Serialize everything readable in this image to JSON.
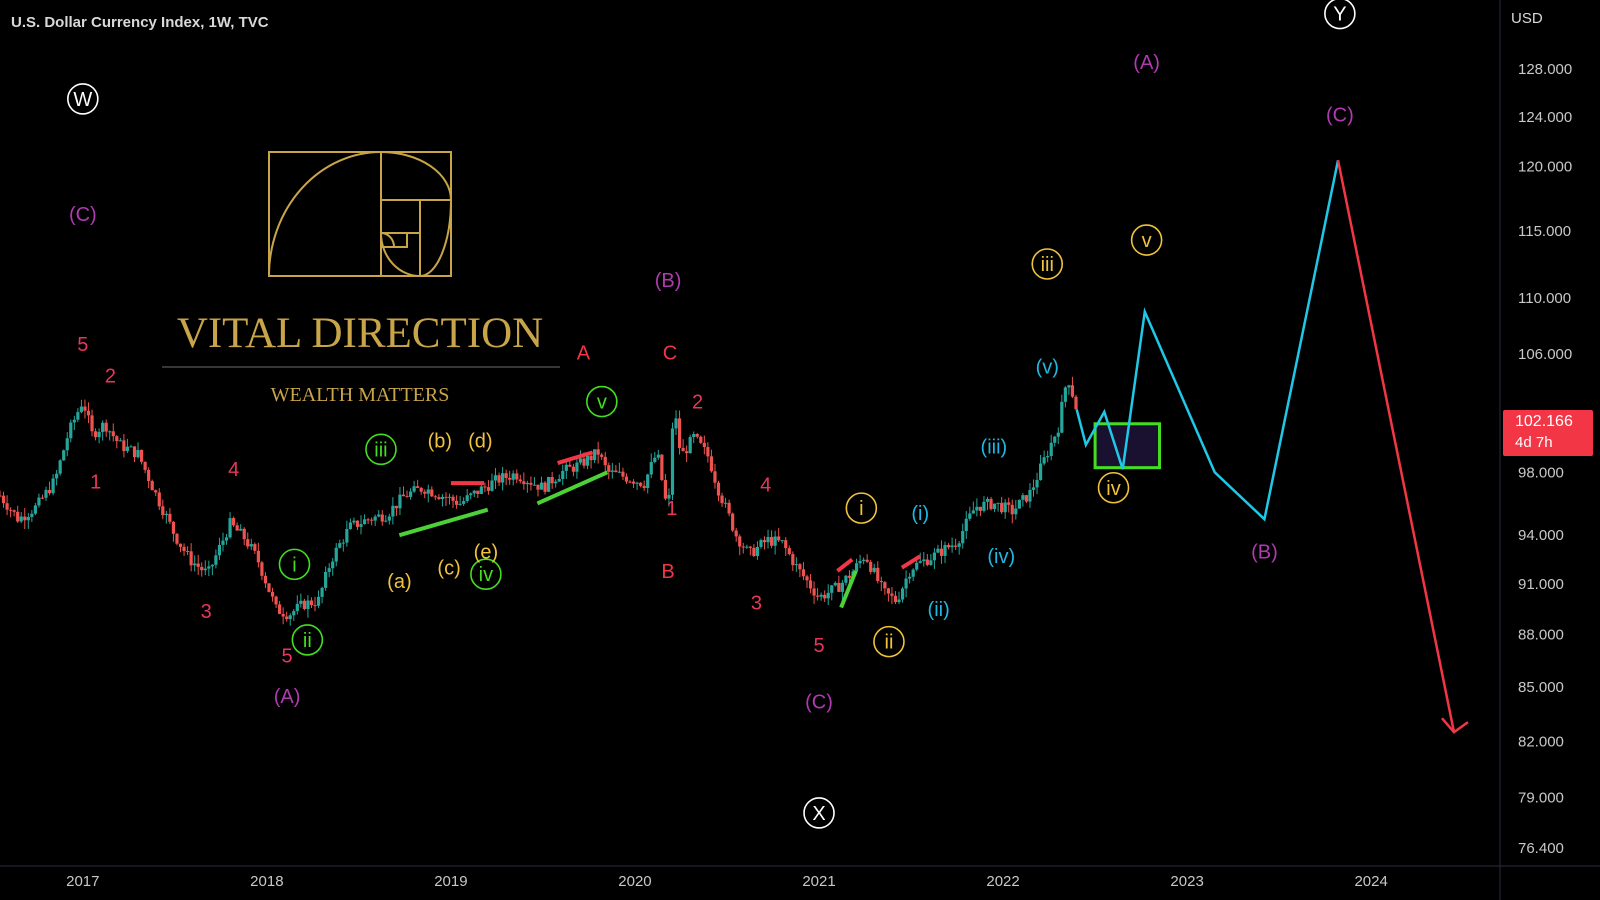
{
  "header": {
    "symbol_title": "U.S. Dollar Currency Index, 1W, TVC",
    "currency": "USD"
  },
  "price_tag": {
    "price": "102.166",
    "countdown": "4d 7h"
  },
  "watermark": {
    "title": "VITAL DIRECTION",
    "subtitle": "WEALTH MATTERS"
  },
  "colors": {
    "background": "#000000",
    "up_candle": "#26a69a",
    "down_candle": "#ef5350",
    "projection_up": "#20c8e8",
    "projection_down": "#f23645",
    "target_box": "#44dd22",
    "gold": "#c9a54a"
  },
  "chart_data": {
    "type": "line",
    "title": "U.S. Dollar Currency Index, 1W, TVC",
    "y_axis": {
      "scale": "log",
      "range": [
        75.5,
        134
      ],
      "ticks": [
        "128.000",
        "124.000",
        "120.000",
        "115.000",
        "110.000",
        "106.000",
        "98.000",
        "94.000",
        "91.000",
        "88.000",
        "85.000",
        "82.000",
        "79.000",
        "76.400"
      ]
    },
    "x_axis": {
      "range": [
        2016.55,
        2024.7
      ],
      "ticks": [
        "2017",
        "2018",
        "2019",
        "2020",
        "2021",
        "2022",
        "2023",
        "2024"
      ]
    },
    "last_price": 102.166,
    "price_path": {
      "name": "",
      "points": [
        [
          2016.55,
          96.5
        ],
        [
          2016.65,
          95.0
        ],
        [
          2016.75,
          95.8
        ],
        [
          2016.85,
          97.5
        ],
        [
          2016.92,
          100.5
        ],
        [
          2017.0,
          102.8
        ],
        [
          2017.05,
          100.5
        ],
        [
          2017.12,
          101.2
        ],
        [
          2017.2,
          99.8
        ],
        [
          2017.3,
          99.2
        ],
        [
          2017.4,
          96.5
        ],
        [
          2017.5,
          94.0
        ],
        [
          2017.58,
          92.5
        ],
        [
          2017.68,
          91.6
        ],
        [
          2017.8,
          94.7
        ],
        [
          2017.88,
          93.8
        ],
        [
          2017.95,
          92.5
        ],
        [
          2018.05,
          89.5
        ],
        [
          2018.12,
          89.2
        ],
        [
          2018.2,
          89.8
        ],
        [
          2018.28,
          90.0
        ],
        [
          2018.35,
          92.5
        ],
        [
          2018.45,
          94.5
        ],
        [
          2018.55,
          95.0
        ],
        [
          2018.65,
          95.3
        ],
        [
          2018.75,
          96.5
        ],
        [
          2018.85,
          97.0
        ],
        [
          2018.95,
          96.5
        ],
        [
          2019.05,
          96.0
        ],
        [
          2019.15,
          96.8
        ],
        [
          2019.25,
          97.5
        ],
        [
          2019.35,
          97.9
        ],
        [
          2019.5,
          97.0
        ],
        [
          2019.6,
          98.0
        ],
        [
          2019.7,
          98.5
        ],
        [
          2019.8,
          99.3
        ],
        [
          2019.85,
          98.0
        ],
        [
          2019.92,
          97.8
        ],
        [
          2020.05,
          97.3
        ],
        [
          2020.12,
          99.3
        ],
        [
          2020.18,
          95.2
        ],
        [
          2020.21,
          102.5
        ],
        [
          2020.25,
          99.0
        ],
        [
          2020.32,
          100.3
        ],
        [
          2020.4,
          99.0
        ],
        [
          2020.45,
          97.0
        ],
        [
          2020.55,
          94.0
        ],
        [
          2020.62,
          92.8
        ],
        [
          2020.72,
          93.7
        ],
        [
          2020.8,
          93.5
        ],
        [
          2020.88,
          92.0
        ],
        [
          2021.0,
          90.2
        ],
        [
          2021.1,
          90.8
        ],
        [
          2021.18,
          91.7
        ],
        [
          2021.25,
          92.8
        ],
        [
          2021.35,
          90.5
        ],
        [
          2021.42,
          90.0
        ],
        [
          2021.5,
          92.0
        ],
        [
          2021.62,
          92.7
        ],
        [
          2021.75,
          93.6
        ],
        [
          2021.85,
          95.8
        ],
        [
          2021.95,
          96.0
        ],
        [
          2022.05,
          95.5
        ],
        [
          2022.15,
          96.7
        ],
        [
          2022.22,
          98.7
        ],
        [
          2022.3,
          101.0
        ],
        [
          2022.35,
          104.5
        ],
        [
          2022.4,
          102.166
        ]
      ]
    },
    "projection": {
      "up_path": [
        [
          2022.4,
          102.166
        ],
        [
          2022.45,
          99.8
        ],
        [
          2022.55,
          102.0
        ],
        [
          2022.65,
          98.2
        ],
        [
          2022.77,
          109.0
        ],
        [
          2023.15,
          98.0
        ],
        [
          2023.42,
          95.0
        ],
        [
          2023.82,
          120.5
        ]
      ],
      "down_path": [
        [
          2023.82,
          120.5
        ],
        [
          2024.45,
          82.5
        ]
      ]
    },
    "target_box": {
      "x": [
        2022.5,
        2022.85
      ],
      "y": [
        98.3,
        101.2
      ]
    },
    "trendlines": [
      {
        "color": "green",
        "points": [
          [
            2018.72,
            94.0
          ],
          [
            2019.2,
            95.6
          ]
        ]
      },
      {
        "color": "red",
        "points": [
          [
            2019.0,
            97.3
          ],
          [
            2019.18,
            97.3
          ]
        ]
      },
      {
        "color": "green",
        "points": [
          [
            2019.47,
            96.0
          ],
          [
            2019.85,
            98.0
          ]
        ]
      },
      {
        "color": "red",
        "points": [
          [
            2019.58,
            98.6
          ],
          [
            2019.77,
            99.3
          ]
        ]
      },
      {
        "color": "green",
        "points": [
          [
            2021.12,
            89.6
          ],
          [
            2021.2,
            91.8
          ]
        ]
      },
      {
        "color": "red",
        "points": [
          [
            2021.1,
            91.8
          ],
          [
            2021.18,
            92.5
          ]
        ]
      },
      {
        "color": "red",
        "points": [
          [
            2021.45,
            92.0
          ],
          [
            2021.55,
            92.7
          ]
        ]
      }
    ],
    "wave_labels": [
      {
        "text": "W",
        "circled": true,
        "x": 2017.0,
        "y": 125.5,
        "color": "#ffffff"
      },
      {
        "text": "(C)",
        "x": 2017.0,
        "y": 116.3,
        "color": "#b03ab0"
      },
      {
        "text": "5",
        "x": 2017.0,
        "y": 106.7,
        "color": "#e8365a"
      },
      {
        "text": "2",
        "x": 2017.15,
        "y": 104.5,
        "color": "#e8365a"
      },
      {
        "text": "1",
        "x": 2017.07,
        "y": 97.4,
        "color": "#e8365a"
      },
      {
        "text": "4",
        "x": 2017.82,
        "y": 98.2,
        "color": "#e8365a"
      },
      {
        "text": "3",
        "x": 2017.67,
        "y": 89.4,
        "color": "#e8365a"
      },
      {
        "text": "5",
        "x": 2018.11,
        "y": 86.8,
        "color": "#e8365a"
      },
      {
        "text": "(A)",
        "x": 2018.11,
        "y": 84.5,
        "color": "#b03ab0"
      },
      {
        "text": "i",
        "circled": true,
        "x": 2018.15,
        "y": 92.2,
        "color": "#44dd22"
      },
      {
        "text": "ii",
        "circled": true,
        "x": 2018.22,
        "y": 87.7,
        "color": "#44dd22"
      },
      {
        "text": "iii",
        "circled": true,
        "x": 2018.62,
        "y": 99.5,
        "color": "#44dd22"
      },
      {
        "text": "iv",
        "circled": true,
        "x": 2019.19,
        "y": 91.6,
        "color": "#44dd22"
      },
      {
        "text": "v",
        "circled": true,
        "x": 2019.82,
        "y": 102.7,
        "color": "#44dd22"
      },
      {
        "text": "(a)",
        "x": 2018.72,
        "y": 91.2,
        "color": "#f0c33c"
      },
      {
        "text": "(b)",
        "x": 2018.94,
        "y": 100.1,
        "color": "#f0c33c"
      },
      {
        "text": "(c)",
        "x": 2018.99,
        "y": 92.0,
        "color": "#f0c33c"
      },
      {
        "text": "(d)",
        "x": 2019.16,
        "y": 100.1,
        "color": "#f0c33c"
      },
      {
        "text": "(e)",
        "x": 2019.19,
        "y": 93.0,
        "color": "#f0c33c"
      },
      {
        "text": "A",
        "x": 2019.72,
        "y": 106.1,
        "color": "#f23645"
      },
      {
        "text": "(B)",
        "x": 2020.18,
        "y": 111.3,
        "color": "#b03ab0"
      },
      {
        "text": "C",
        "x": 2020.19,
        "y": 106.1,
        "color": "#f23645"
      },
      {
        "text": "2",
        "x": 2020.34,
        "y": 102.7,
        "color": "#e8365a"
      },
      {
        "text": "1",
        "x": 2020.2,
        "y": 95.7,
        "color": "#e8365a"
      },
      {
        "text": "B",
        "x": 2020.18,
        "y": 91.8,
        "color": "#f23645"
      },
      {
        "text": "4",
        "x": 2020.71,
        "y": 97.2,
        "color": "#e8365a"
      },
      {
        "text": "3",
        "x": 2020.66,
        "y": 89.9,
        "color": "#e8365a"
      },
      {
        "text": "5",
        "x": 2021.0,
        "y": 87.4,
        "color": "#e8365a"
      },
      {
        "text": "(C)",
        "x": 2021.0,
        "y": 84.2,
        "color": "#b03ab0"
      },
      {
        "text": "X",
        "circled": true,
        "x": 2021.0,
        "y": 78.2,
        "color": "#ffffff"
      },
      {
        "text": "i",
        "circled": true,
        "x": 2021.23,
        "y": 95.7,
        "color": "#f0c33c"
      },
      {
        "text": "ii",
        "circled": true,
        "x": 2021.38,
        "y": 87.6,
        "color": "#f0c33c"
      },
      {
        "text": "(i)",
        "x": 2021.55,
        "y": 95.4,
        "color": "#20b8e0"
      },
      {
        "text": "(ii)",
        "x": 2021.65,
        "y": 89.5,
        "color": "#20b8e0"
      },
      {
        "text": "(iii)",
        "x": 2021.95,
        "y": 99.7,
        "color": "#20b8e0"
      },
      {
        "text": "(iv)",
        "x": 2021.99,
        "y": 92.7,
        "color": "#20b8e0"
      },
      {
        "text": "iii",
        "circled": true,
        "x": 2022.24,
        "y": 112.5,
        "color": "#f0c33c"
      },
      {
        "text": "(v)",
        "x": 2022.24,
        "y": 105.1,
        "color": "#20b8e0"
      },
      {
        "text": "iv",
        "circled": true,
        "x": 2022.6,
        "y": 97.0,
        "color": "#f0c33c"
      },
      {
        "text": "v",
        "circled": true,
        "x": 2022.78,
        "y": 114.3,
        "color": "#f0c33c"
      },
      {
        "text": "(A)",
        "x": 2022.78,
        "y": 128.6,
        "color": "#b03ab0"
      },
      {
        "text": "Y",
        "circled": true,
        "x": 2023.83,
        "y": 132.8,
        "color": "#ffffff"
      },
      {
        "text": "(C)",
        "x": 2023.83,
        "y": 124.2,
        "color": "#b03ab0"
      },
      {
        "text": "(B)",
        "x": 2023.42,
        "y": 93.0,
        "color": "#b03ab0"
      }
    ]
  }
}
